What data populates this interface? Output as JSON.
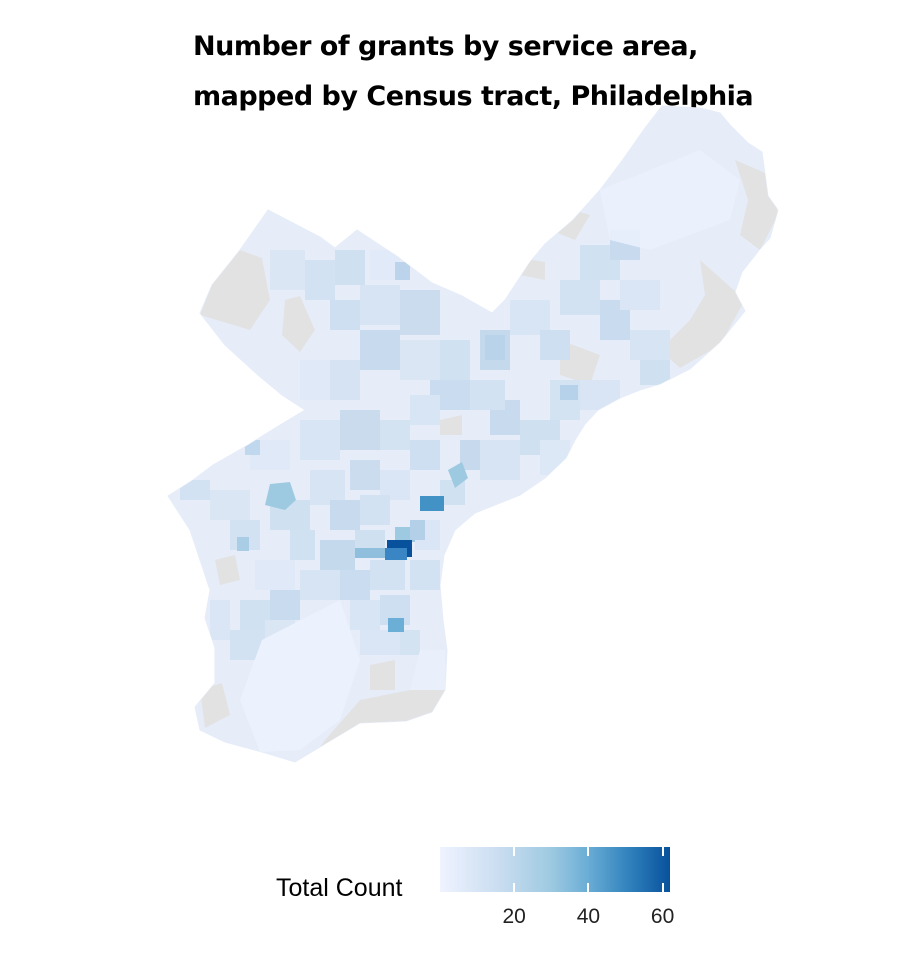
{
  "title": {
    "line1": "Number of grants by service area,",
    "line2": "mapped by Census tract, Philadelphia"
  },
  "legend": {
    "label": "Total Count",
    "min": 0,
    "max": 62,
    "ticks": [
      20,
      40,
      60
    ],
    "colors": [
      "#eff3ff",
      "#c6dbef",
      "#9ecae1",
      "#6baed6",
      "#3182bd",
      "#08519c"
    ]
  },
  "colors": {
    "no_data": "#e4e4e4",
    "low": "#eff3ff",
    "high": "#08519c"
  }
}
